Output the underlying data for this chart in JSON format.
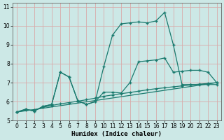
{
  "xlabel": "Humidex (Indice chaleur)",
  "bg_color": "#cce8e6",
  "grid_color": "#d8aaaa",
  "line_color": "#1a7a6e",
  "xlim": [
    -0.5,
    23.5
  ],
  "ylim": [
    5,
    11.2
  ],
  "xticks": [
    0,
    1,
    2,
    3,
    4,
    5,
    6,
    7,
    8,
    9,
    10,
    11,
    12,
    13,
    14,
    15,
    16,
    17,
    18,
    19,
    20,
    21,
    22,
    23
  ],
  "yticks": [
    5,
    6,
    7,
    8,
    9,
    10,
    11
  ],
  "lines": [
    {
      "x": [
        0,
        1,
        2,
        3,
        4,
        5,
        6,
        7,
        8,
        9,
        10,
        11,
        12,
        13,
        14,
        15,
        16,
        17,
        18,
        19,
        20,
        21,
        22,
        23
      ],
      "y": [
        5.45,
        5.6,
        5.5,
        5.75,
        5.85,
        7.55,
        7.3,
        6.05,
        5.85,
        6.0,
        6.5,
        6.5,
        6.45,
        7.0,
        8.1,
        8.15,
        8.2,
        8.3,
        7.55,
        7.6,
        7.65,
        7.65,
        7.55,
        7.0
      ]
    },
    {
      "x": [
        0,
        1,
        2,
        3,
        4,
        5,
        6,
        7,
        8,
        9,
        10,
        11,
        12,
        13,
        14,
        15,
        16,
        17,
        18,
        19,
        20,
        21,
        22,
        23
      ],
      "y": [
        5.45,
        5.6,
        5.5,
        5.75,
        5.85,
        7.55,
        7.3,
        6.05,
        5.85,
        6.0,
        7.85,
        9.5,
        10.1,
        10.15,
        10.2,
        10.15,
        10.25,
        10.7,
        9.0,
        6.9,
        6.9,
        6.9,
        6.9,
        6.9
      ]
    },
    {
      "x": [
        0,
        23
      ],
      "y": [
        5.45,
        7.0
      ]
    },
    {
      "x": [
        0,
        1,
        2,
        3,
        4,
        5,
        6,
        7,
        8,
        9,
        10,
        11,
        12,
        13,
        14,
        15,
        16,
        17,
        18,
        19,
        20,
        21,
        22,
        23
      ],
      "y": [
        5.45,
        5.55,
        5.55,
        5.7,
        5.8,
        5.88,
        5.95,
        6.02,
        6.1,
        6.18,
        6.28,
        6.35,
        6.42,
        6.48,
        6.55,
        6.62,
        6.68,
        6.73,
        6.78,
        6.83,
        6.88,
        6.92,
        6.96,
        7.0
      ]
    }
  ],
  "marker": "+",
  "markersize": 3,
  "linewidth": 0.9,
  "tick_fontsize": 5.5,
  "label_fontsize": 6.5
}
